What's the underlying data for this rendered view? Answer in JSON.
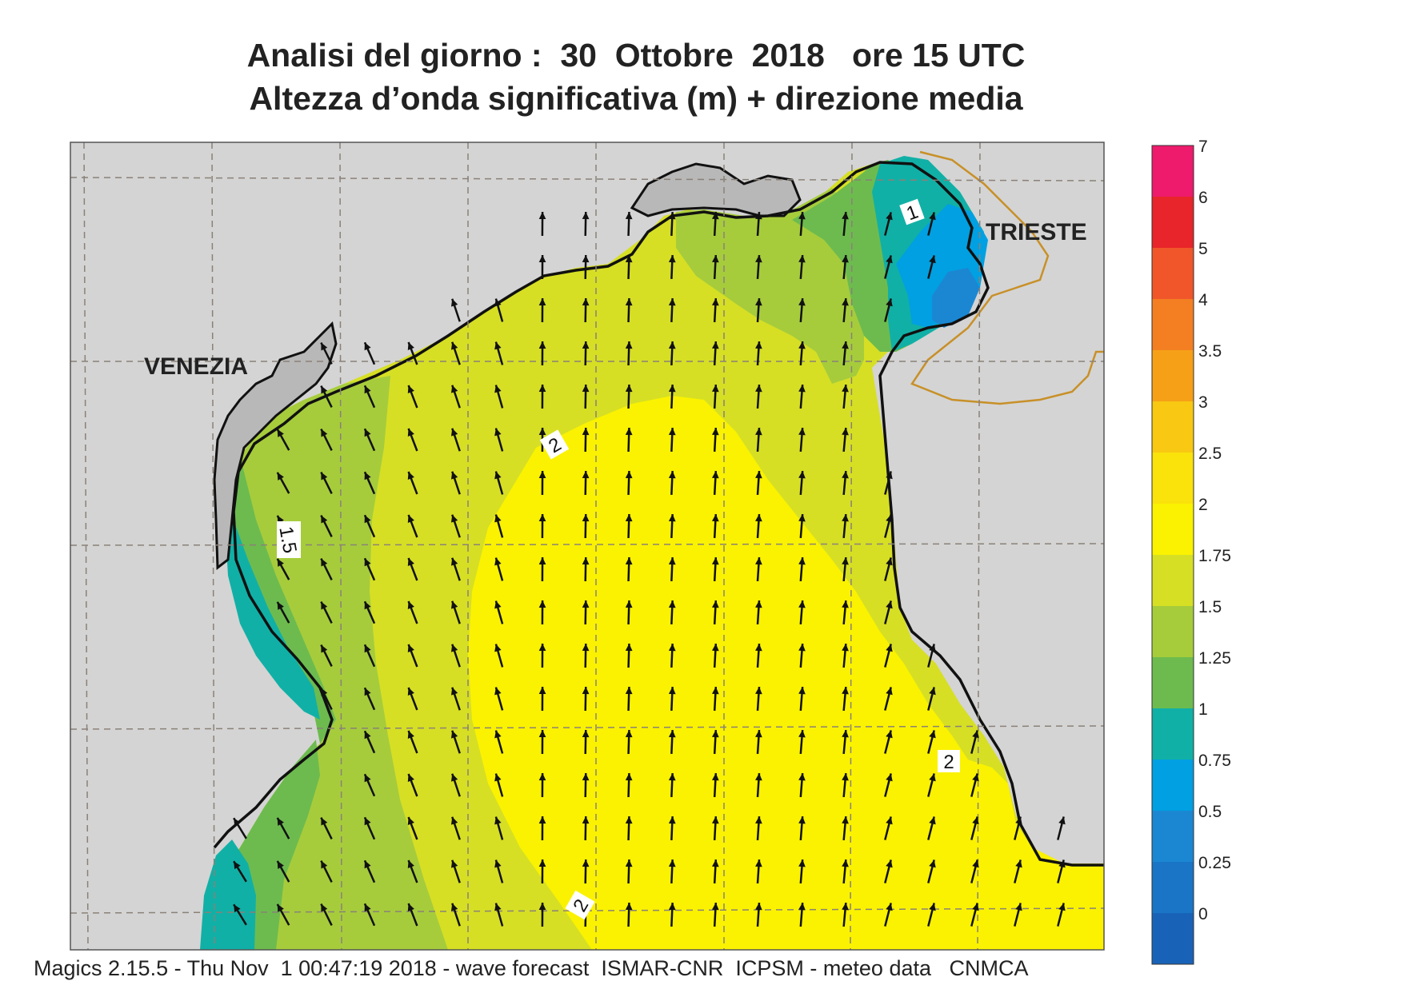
{
  "title_line1": "Analisi del giorno :  30  Ottobre  2018   ore 15 UTC",
  "title_line2": "Altezza d’onda significativa (m) + direzione media",
  "footer": "Magics 2.15.5 - Thu Nov  1 00:47:19 2018 - wave forecast  ISMAR-CNR  ICPSM - meteo data   CNMCA",
  "cities": {
    "venezia": "VENEZIA",
    "trieste": "TRIESTE"
  },
  "contour_labels": {
    "north": "1",
    "west": "1.5",
    "center": "2",
    "southeast": "2",
    "south": "2"
  },
  "legend": {
    "labels": [
      "7",
      "6",
      "5",
      "4",
      "3.5",
      "3",
      "2.5",
      "2",
      "1.75",
      "1.5",
      "1.25",
      "1",
      "0.75",
      "0.5",
      "0.25",
      "0"
    ],
    "colors": [
      "#ee1a6b",
      "#e8252a",
      "#f0562a",
      "#f47f22",
      "#f6a018",
      "#f8c812",
      "#fae20b",
      "#faf200",
      "#d6df24",
      "#a6cc3c",
      "#6dbb4f",
      "#11b0a6",
      "#00a0e2",
      "#1b87d2",
      "#1a75c6",
      "#1863b8"
    ]
  },
  "colors": {
    "land": "#d4d4d4",
    "lagoon": "#b8b8b8",
    "border": "#c89028",
    "arrow": "#111111"
  }
}
